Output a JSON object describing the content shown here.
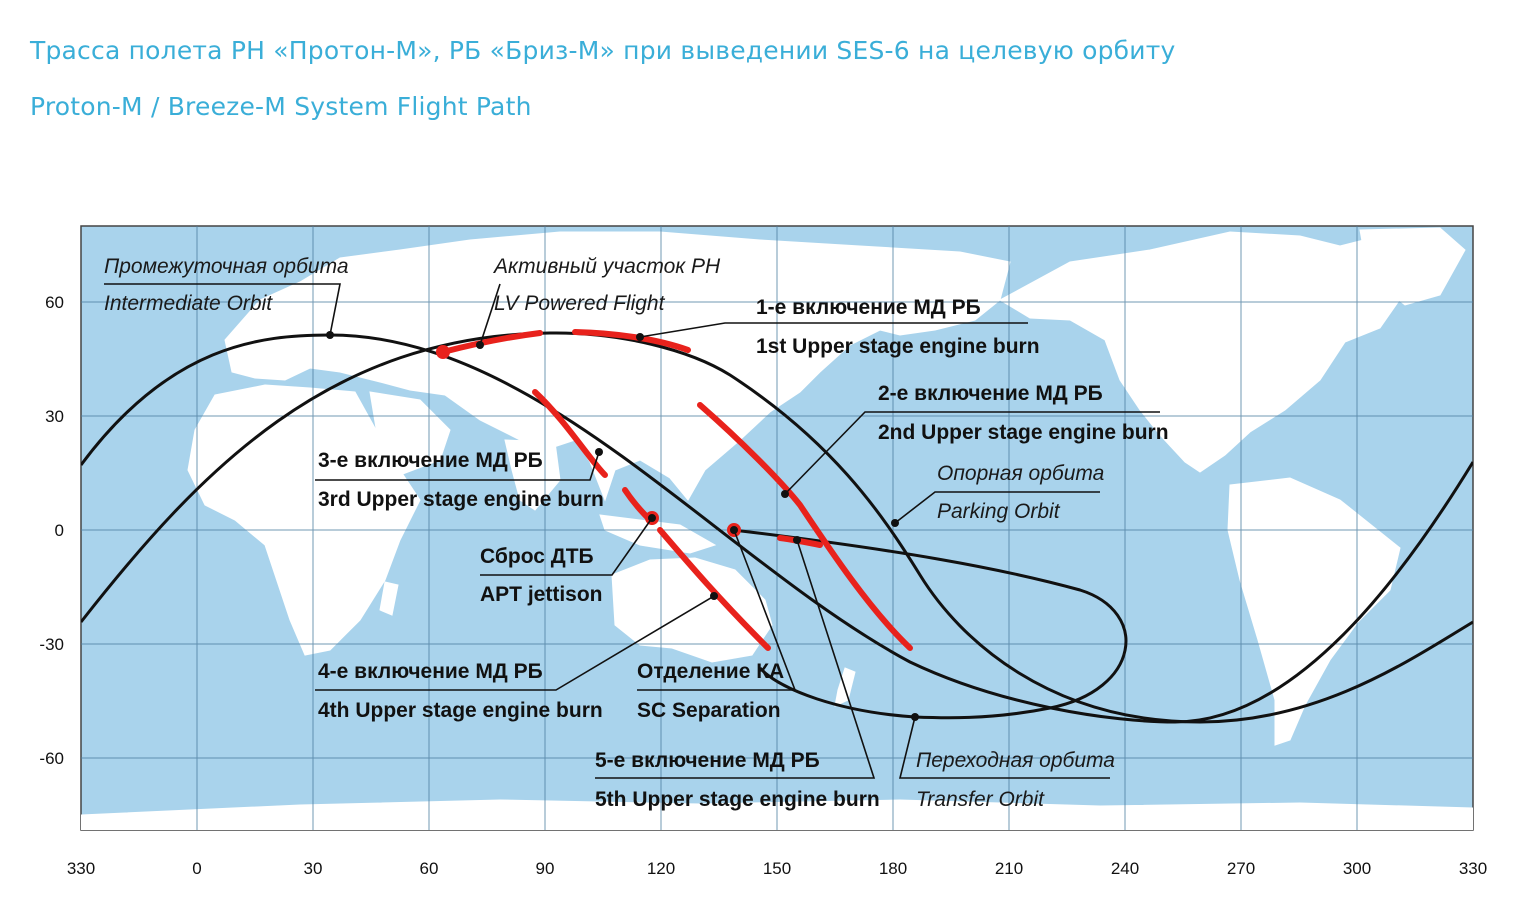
{
  "title_ru": "Трасса полета РН «Протон-М», РБ «Бриз-М» при выведении SES-6 на целевую орбиту",
  "title_en": "Proton-M / Breeze-M System Flight Path",
  "colors": {
    "title": "#3aaed8",
    "ocean": "#a9d3ec",
    "land": "#ffffff",
    "grid": "#4f7fa1",
    "track": "#111111",
    "burn": "#e8221c"
  },
  "axes": {
    "x_ticks": [
      "330",
      "0",
      "30",
      "60",
      "90",
      "120",
      "150",
      "180",
      "210",
      "240",
      "270",
      "300",
      "330"
    ],
    "y_ticks": [
      "60",
      "30",
      "0",
      "-30",
      "-60"
    ]
  },
  "labels": {
    "intermediate_ru": "Промежуточная орбита",
    "intermediate_en": "Intermediate Orbit",
    "powered_ru": "Активный участок РН",
    "powered_en": "LV Powered Flight",
    "burn1_ru": "1-е включение МД РБ",
    "burn1_en": "1st Upper stage engine burn",
    "burn2_ru": "2-е включение МД РБ",
    "burn2_en": "2nd Upper stage engine burn",
    "parking_ru": "Опорная орбита",
    "parking_en": "Parking Orbit",
    "burn3_ru": "3-е включение МД РБ",
    "burn3_en": "3rd Upper stage engine burn",
    "apt_ru": "Сброс ДТБ",
    "apt_en": "APT jettison",
    "burn4_ru": "4-е включение МД РБ",
    "burn4_en": "4th Upper stage engine burn",
    "sep_ru": "Отделение КА",
    "sep_en": "SC Separation",
    "burn5_ru": "5-е включение МД РБ",
    "burn5_en": "5th Upper stage engine burn",
    "transfer_ru": "Переходная орбита",
    "transfer_en": "Transfer Orbit"
  }
}
